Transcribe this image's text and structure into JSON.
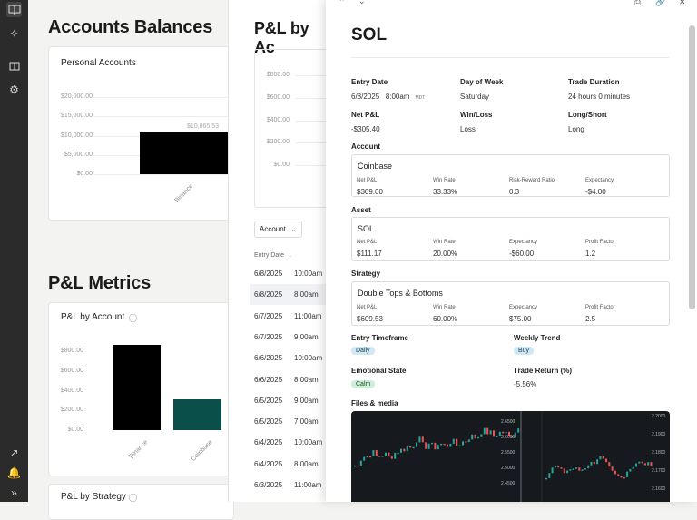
{
  "sidebar": {
    "icons": [
      "book-open-icon",
      "sparkle-icon",
      "book-icon",
      "settings-gear-icon",
      "share-icon",
      "bell-icon",
      "chevrons-right-icon"
    ]
  },
  "left": {
    "accounts_title": "Accounts Balances",
    "personal_accounts_title": "Personal Accounts",
    "personal_chart": {
      "type": "bar",
      "categories": [
        "Binance"
      ],
      "values": [
        10865.53
      ],
      "data_label": "$10,865.53",
      "yticks": [
        "$20,000.00",
        "$15,000.00",
        "$10,000.00",
        "$5,000.00",
        "$0.00"
      ],
      "ylim": [
        0,
        20000
      ]
    },
    "pl_metrics_title": "P&L Metrics",
    "pl_by_account_title": "P&L by Account",
    "pl_by_account_chart": {
      "type": "bar",
      "categories": [
        "Binance",
        "Coinbase"
      ],
      "values": [
        860,
        309
      ],
      "yticks": [
        "$800.00",
        "$600.00",
        "$400.00",
        "$200.00",
        "$0.00"
      ],
      "ylim": [
        0,
        900
      ]
    },
    "pl_by_strategy_title": "P&L by Strategy"
  },
  "middle": {
    "title": "P&L by Ac",
    "yticks": [
      "$800.00",
      "$600.00",
      "$400.00",
      "$200.00",
      "$0.00"
    ],
    "filter_label": "Account",
    "col_entry_date": "Entry Date",
    "rows": [
      {
        "date": "6/8/2025",
        "time": "10:00am"
      },
      {
        "date": "6/8/2025",
        "time": "8:00am"
      },
      {
        "date": "6/7/2025",
        "time": "11:00am"
      },
      {
        "date": "6/7/2025",
        "time": "9:00am"
      },
      {
        "date": "6/6/2025",
        "time": "10:00am"
      },
      {
        "date": "6/6/2025",
        "time": "8:00am"
      },
      {
        "date": "6/5/2025",
        "time": "9:00am"
      },
      {
        "date": "6/5/2025",
        "time": "7:00am"
      },
      {
        "date": "6/4/2025",
        "time": "10:00am"
      },
      {
        "date": "6/4/2025",
        "time": "8:00am"
      },
      {
        "date": "6/3/2025",
        "time": "11:00am"
      }
    ]
  },
  "modal": {
    "title": "SOL",
    "entry_date_label": "Entry Date",
    "entry_date": "6/8/2025",
    "entry_time": "8:00am",
    "entry_tz": "MDT",
    "day_label": "Day of Week",
    "day": "Saturday",
    "duration_label": "Trade Duration",
    "duration": "24 hours 0 minutes",
    "netpl_label": "Net P&L",
    "netpl": "-$305.40",
    "winloss_label": "Win/Loss",
    "winloss": "Loss",
    "longshort_label": "Long/Short",
    "longshort": "Long",
    "account_label": "Account",
    "account": {
      "name": "Coinbase",
      "l1": "Net P&L",
      "v1": "$309.00",
      "l2": "Win Rate",
      "v2": "33.33%",
      "l3": "Risk-Reward Ratio",
      "v3": "0.3",
      "l4": "Expectancy",
      "v4": "-$4.00"
    },
    "asset_label": "Asset",
    "asset": {
      "name": "SOL",
      "l1": "Net P&L",
      "v1": "$111.17",
      "l2": "Win Rate",
      "v2": "20.00%",
      "l3": "Expectancy",
      "v3": "-$60.00",
      "l4": "Profit Factor",
      "v4": "1.2"
    },
    "strategy_label": "Strategy",
    "strategy": {
      "name": "Double Tops & Bottoms",
      "l1": "Net P&L",
      "v1": "$609.53",
      "l2": "Win Rate",
      "v2": "60.00%",
      "l3": "Expectancy",
      "v3": "$75.00",
      "l4": "Profit Factor",
      "v4": "2.5"
    },
    "timeframe_label": "Entry Timeframe",
    "timeframe": "Daily",
    "weekly_label": "Weekly Trend",
    "weekly": "Buy",
    "emotion_label": "Emotional State",
    "emotion": "Calm",
    "return_label": "Trade Return (%)",
    "return": "-5.56%",
    "files_label": "Files & media",
    "media_prices_left": [
      "2.6500",
      "2.6000",
      "2.5500",
      "2.5000",
      "2.4500"
    ],
    "media_prices_right": [
      "2.2000",
      "2.1900",
      "2.1800",
      "2.1700",
      "2.1600"
    ]
  }
}
